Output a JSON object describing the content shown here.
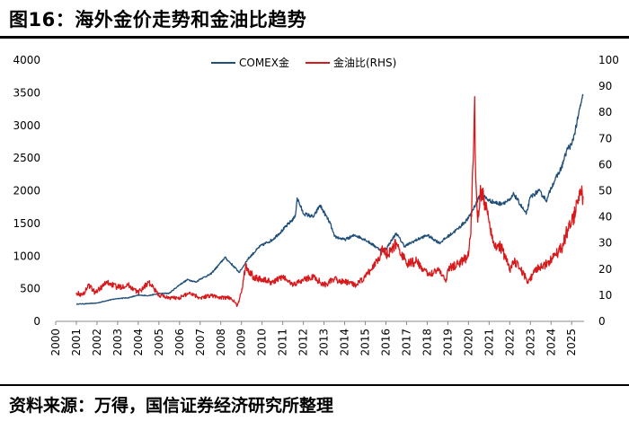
{
  "title": "图16：海外金价走势和金油比趋势",
  "source": "资料来源：万得，国信证券经济研究所整理",
  "chart_data": {
    "type": "line",
    "x_ticks": [
      "2000",
      "2001",
      "2002",
      "2003",
      "2004",
      "2005",
      "2006",
      "2007",
      "2008",
      "2009",
      "2010",
      "2011",
      "2012",
      "2013",
      "2014",
      "2015",
      "2016",
      "2017",
      "2018",
      "2019",
      "2020",
      "2021",
      "2022",
      "2023",
      "2024",
      "2025"
    ],
    "xlim": [
      2000,
      2025.6
    ],
    "y_left": {
      "lim": [
        0,
        4000
      ],
      "ticks": [
        "0",
        "500",
        "1000",
        "1500",
        "2000",
        "2500",
        "3000",
        "3500",
        "4000"
      ]
    },
    "y_right": {
      "lim": [
        0,
        100
      ],
      "ticks": [
        "0",
        "10",
        "20",
        "30",
        "40",
        "50",
        "60",
        "70",
        "80",
        "90",
        "100"
      ]
    },
    "series": [
      {
        "name": "COMEX金",
        "axis": "left",
        "color": "#1f4e79",
        "x": [
          2001.0,
          2001.5,
          2002.0,
          2002.5,
          2003.0,
          2003.5,
          2004.0,
          2004.5,
          2005.0,
          2005.5,
          2006.0,
          2006.4,
          2006.8,
          2007.0,
          2007.5,
          2008.0,
          2008.2,
          2008.6,
          2008.9,
          2009.3,
          2009.9,
          2010.5,
          2011.0,
          2011.6,
          2011.7,
          2012.0,
          2012.5,
          2012.8,
          2013.3,
          2013.5,
          2014.0,
          2014.5,
          2015.0,
          2015.9,
          2016.5,
          2016.9,
          2017.5,
          2018.0,
          2018.6,
          2019.0,
          2019.5,
          2020.0,
          2020.6,
          2021.0,
          2021.5,
          2022.0,
          2022.2,
          2022.8,
          2023.0,
          2023.4,
          2023.8,
          2024.0,
          2024.5,
          2024.8,
          2025.0,
          2025.3,
          2025.45,
          2025.55
        ],
        "values": [
          265,
          270,
          280,
          320,
          350,
          360,
          400,
          395,
          425,
          430,
          560,
          640,
          600,
          650,
          720,
          900,
          980,
          850,
          750,
          950,
          1150,
          1250,
          1400,
          1600,
          1890,
          1650,
          1600,
          1780,
          1500,
          1300,
          1250,
          1320,
          1250,
          1060,
          1350,
          1150,
          1250,
          1320,
          1200,
          1300,
          1420,
          1580,
          1950,
          1850,
          1800,
          1850,
          1950,
          1640,
          1900,
          2000,
          1850,
          2050,
          2350,
          2650,
          2700,
          3100,
          3350,
          3450
        ]
      },
      {
        "name": "金油比(RHS)",
        "axis": "right",
        "color": "#d7191c",
        "x": [
          2001.0,
          2001.3,
          2001.6,
          2001.9,
          2002.5,
          2003.0,
          2003.5,
          2004.0,
          2004.5,
          2005.0,
          2005.5,
          2006.0,
          2006.5,
          2007.0,
          2007.5,
          2008.0,
          2008.5,
          2008.8,
          2009.0,
          2009.2,
          2009.6,
          2010.0,
          2010.5,
          2011.0,
          2011.5,
          2012.0,
          2012.5,
          2013.0,
          2013.5,
          2014.0,
          2014.6,
          2015.0,
          2015.3,
          2015.9,
          2016.1,
          2016.5,
          2017.0,
          2017.5,
          2018.0,
          2018.6,
          2018.9,
          2019.0,
          2019.5,
          2020.0,
          2020.15,
          2020.3,
          2020.35,
          2020.45,
          2020.6,
          2020.9,
          2021.2,
          2021.6,
          2022.0,
          2022.2,
          2022.5,
          2022.9,
          2023.3,
          2023.8,
          2024.0,
          2024.5,
          2024.8,
          2025.0,
          2025.3,
          2025.45,
          2025.55
        ],
        "values": [
          11,
          10,
          14,
          11,
          15,
          13,
          14,
          11,
          15,
          10,
          9,
          9,
          11,
          9,
          10,
          9,
          9,
          6,
          11,
          21,
          17,
          16,
          15,
          17,
          14,
          16,
          17,
          14,
          16,
          15,
          14,
          17,
          20,
          28,
          25,
          30,
          22,
          23,
          18,
          20,
          15,
          20,
          22,
          25,
          40,
          86,
          55,
          38,
          50,
          43,
          30,
          28,
          20,
          23,
          20,
          15,
          20,
          22,
          24,
          28,
          35,
          38,
          45,
          50,
          48
        ]
      }
    ]
  }
}
